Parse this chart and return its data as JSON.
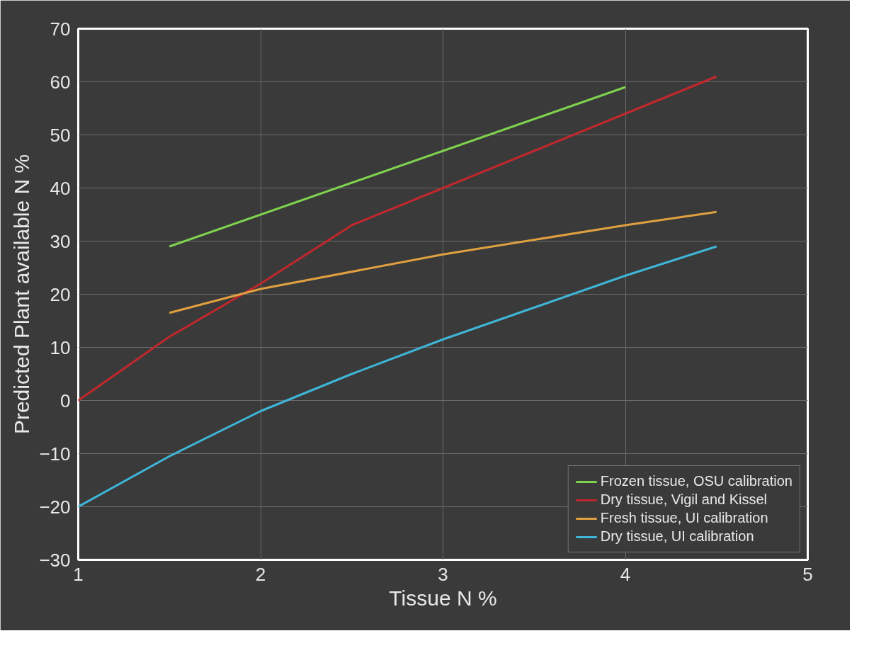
{
  "chart_data": {
    "type": "line",
    "xlabel": "Tissue N %",
    "ylabel": "Predicted Plant available N %",
    "xlim": [
      1,
      5
    ],
    "xticks": [
      1,
      2,
      3,
      4,
      5
    ],
    "ylim": [
      -30,
      70
    ],
    "yticks": [
      -30,
      -20,
      -10,
      0,
      10,
      20,
      30,
      40,
      50,
      60,
      70
    ],
    "grid": true,
    "legend": "bottom right",
    "marker": "none",
    "line_style": "solid",
    "series": [
      {
        "name": "Frozen tissue, OSU calibration",
        "color": "#7fd34e",
        "x": [
          1.5,
          4
        ],
        "values": [
          29,
          59
        ]
      },
      {
        "name": "Dry tissue, Vigil and Kissel",
        "color": "#c0282d",
        "x": [
          1,
          1.5,
          2,
          2.5,
          3,
          3.5,
          4,
          4.5
        ],
        "values": [
          0,
          12,
          22,
          33,
          40,
          47,
          54,
          61
        ]
      },
      {
        "name": "Fresh tissue, UI calibration",
        "color": "#e0a040",
        "x": [
          1.5,
          2,
          3,
          4,
          4.5
        ],
        "values": [
          16.5,
          21,
          27.5,
          33,
          35.5
        ]
      },
      {
        "name": "Dry tissue, UI calibration",
        "color": "#3fb6d8",
        "x": [
          1,
          1.5,
          2,
          2.5,
          3,
          3.5,
          4,
          4.5
        ],
        "values": [
          -20,
          -10.5,
          -2,
          5,
          11.5,
          17.5,
          23.5,
          29
        ]
      }
    ]
  }
}
